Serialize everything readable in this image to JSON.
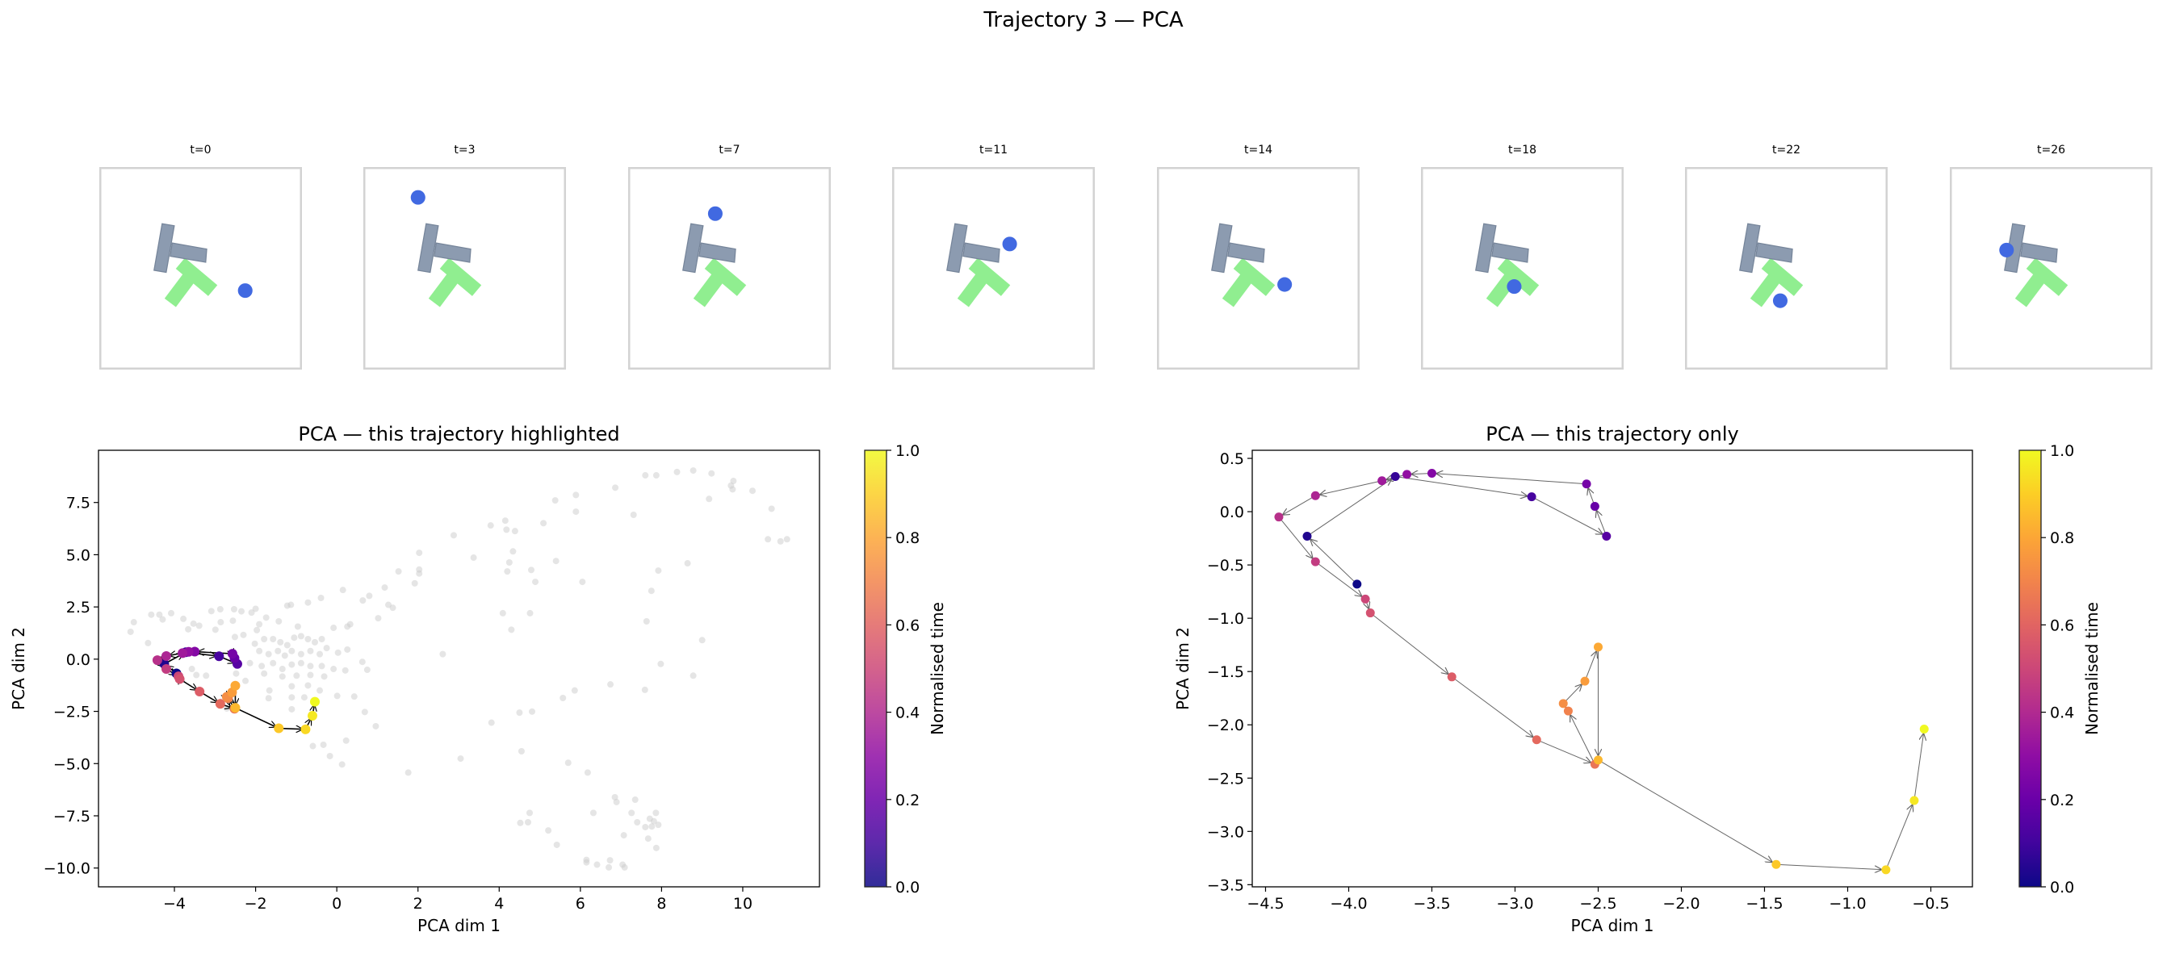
{
  "title": "Trajectory 3 — PCA",
  "thumbnails": [
    {
      "label": "t=0"
    },
    {
      "label": "t=3"
    },
    {
      "label": "t=7"
    },
    {
      "label": "t=11"
    },
    {
      "label": "t=14"
    },
    {
      "label": "t=18"
    },
    {
      "label": "t=22"
    },
    {
      "label": "t=26"
    }
  ],
  "colors": {
    "agent": "#4169e1",
    "block": "#8c9bb0",
    "target": "#90ee90",
    "background_points": "#cccccc",
    "arrows_left": "#000000",
    "arrows_right": "#666666"
  },
  "trajectory": {
    "x": [
      -3.95,
      -4.25,
      -3.72,
      -2.9,
      -2.45,
      -2.52,
      -2.57,
      -3.5,
      -3.65,
      -3.8,
      -4.2,
      -4.42,
      -4.2,
      -3.9,
      -3.87,
      -3.38,
      -2.87,
      -2.52,
      -2.68,
      -2.71,
      -2.58,
      -2.5,
      -2.5,
      -1.43,
      -0.77,
      -0.6,
      -0.54
    ],
    "y": [
      -0.68,
      -0.23,
      0.33,
      0.14,
      -0.23,
      0.05,
      0.26,
      0.36,
      0.35,
      0.29,
      0.15,
      -0.05,
      -0.47,
      -0.82,
      -0.95,
      -1.55,
      -2.14,
      -2.37,
      -1.87,
      -1.8,
      -1.59,
      -1.27,
      -2.33,
      -3.31,
      -3.36,
      -2.71,
      -2.04
    ]
  },
  "chart_data": [
    {
      "type": "scatter",
      "title": "PCA — this trajectory highlighted",
      "xlabel": "PCA dim 1",
      "ylabel": "PCA dim 2",
      "xlim": [
        -5.87,
        11.89
      ],
      "ylim": [
        -10.9,
        10.0
      ],
      "xticks": [
        -4,
        -2,
        0,
        2,
        4,
        6,
        8,
        10
      ],
      "yticks": [
        -10.0,
        -7.5,
        -5.0,
        -2.5,
        0.0,
        2.5,
        5.0,
        7.5
      ],
      "grid": false,
      "colorbar": {
        "label": "Normalised time",
        "ticks": [
          0.0,
          0.2,
          0.4,
          0.6,
          0.8,
          1.0
        ],
        "colormap": "plasma"
      },
      "background_points": [
        [
          7.6,
          8.8
        ],
        [
          7.87,
          8.8
        ],
        [
          8.38,
          8.96
        ],
        [
          8.78,
          9.03
        ],
        [
          9.23,
          8.89
        ],
        [
          9.77,
          8.53
        ],
        [
          9.71,
          8.31
        ],
        [
          9.75,
          8.13
        ],
        [
          10.24,
          8.06
        ],
        [
          6.86,
          8.21
        ],
        [
          5.89,
          7.86
        ],
        [
          5.38,
          7.6
        ],
        [
          9.17,
          7.67
        ],
        [
          10.71,
          7.2
        ],
        [
          5.89,
          7.06
        ],
        [
          7.31,
          6.91
        ],
        [
          4.15,
          6.63
        ],
        [
          5.09,
          6.51
        ],
        [
          3.79,
          6.4
        ],
        [
          4.18,
          6.2
        ],
        [
          4.39,
          6.13
        ],
        [
          2.88,
          5.93
        ],
        [
          10.62,
          5.74
        ],
        [
          10.93,
          5.64
        ],
        [
          11.09,
          5.74
        ],
        [
          4.34,
          5.16
        ],
        [
          2.03,
          5.09
        ],
        [
          3.37,
          4.86
        ],
        [
          5.4,
          4.7
        ],
        [
          4.25,
          4.63
        ],
        [
          8.64,
          4.59
        ],
        [
          4.79,
          4.27
        ],
        [
          4.2,
          4.2
        ],
        [
          2.03,
          4.29
        ],
        [
          2.03,
          4.1
        ],
        [
          1.52,
          4.2
        ],
        [
          7.92,
          4.24
        ],
        [
          4.89,
          3.7
        ],
        [
          6.05,
          3.7
        ],
        [
          1.92,
          3.63
        ],
        [
          1.18,
          3.43
        ],
        [
          0.15,
          3.31
        ],
        [
          7.75,
          3.27
        ],
        [
          0.8,
          3.03
        ],
        [
          -0.39,
          2.93
        ],
        [
          0.64,
          2.81
        ],
        [
          1.38,
          2.46
        ],
        [
          1.27,
          2.6
        ],
        [
          -1.22,
          2.56
        ],
        [
          -1.13,
          2.6
        ],
        [
          -0.71,
          2.71
        ],
        [
          4.09,
          2.2
        ],
        [
          4.76,
          2.2
        ],
        [
          1.02,
          1.96
        ],
        [
          7.63,
          1.81
        ],
        [
          0.33,
          1.67
        ],
        [
          4.3,
          1.41
        ],
        [
          9.0,
          0.91
        ],
        [
          2.61,
          0.24
        ],
        [
          7.98,
          -0.23
        ],
        [
          8.78,
          -0.79
        ],
        [
          6.74,
          -1.21
        ],
        [
          5.86,
          -1.5
        ],
        [
          7.59,
          -1.47
        ],
        [
          5.57,
          -1.86
        ],
        [
          4.5,
          -2.56
        ],
        [
          4.81,
          -2.51
        ],
        [
          0.96,
          -3.21
        ],
        [
          3.81,
          -3.04
        ],
        [
          0.69,
          -2.53
        ],
        [
          0.23,
          -3.9
        ],
        [
          -0.33,
          -4.1
        ],
        [
          -0.59,
          -4.16
        ],
        [
          -0.17,
          -4.64
        ],
        [
          0.13,
          -5.04
        ],
        [
          1.76,
          -5.43
        ],
        [
          3.05,
          -4.76
        ],
        [
          4.55,
          -4.41
        ],
        [
          5.7,
          -4.96
        ],
        [
          6.18,
          -5.43
        ],
        [
          6.85,
          -6.61
        ],
        [
          6.89,
          -6.84
        ],
        [
          7.35,
          -6.73
        ],
        [
          4.75,
          -7.36
        ],
        [
          6.32,
          -7.36
        ],
        [
          7.26,
          -7.36
        ],
        [
          7.86,
          -7.36
        ],
        [
          7.71,
          -7.64
        ],
        [
          7.81,
          -7.76
        ],
        [
          7.4,
          -7.81
        ],
        [
          4.52,
          -7.84
        ],
        [
          4.71,
          -7.81
        ],
        [
          7.92,
          -7.93
        ],
        [
          7.6,
          -8.04
        ],
        [
          7.76,
          -8.01
        ],
        [
          5.21,
          -8.2
        ],
        [
          7.07,
          -8.43
        ],
        [
          7.67,
          -8.59
        ],
        [
          5.42,
          -8.89
        ],
        [
          7.87,
          -9.04
        ],
        [
          6.15,
          -9.61
        ],
        [
          6.15,
          -9.73
        ],
        [
          6.41,
          -9.84
        ],
        [
          6.73,
          -9.63
        ],
        [
          7.04,
          -9.84
        ],
        [
          6.7,
          -9.97
        ],
        [
          7.09,
          -9.97
        ],
        [
          -5.0,
          1.77
        ],
        [
          -5.08,
          1.31
        ],
        [
          -4.57,
          2.13
        ],
        [
          -4.37,
          2.13
        ],
        [
          -4.29,
          1.9
        ],
        [
          -4.08,
          2.2
        ],
        [
          -3.78,
          1.93
        ],
        [
          -3.53,
          1.7
        ],
        [
          -3.66,
          1.43
        ],
        [
          -3.39,
          1.6
        ],
        [
          -3.09,
          2.3
        ],
        [
          -2.87,
          2.39
        ],
        [
          -2.53,
          2.39
        ],
        [
          -2.35,
          2.29
        ],
        [
          -2.0,
          2.41
        ],
        [
          -2.1,
          2.23
        ],
        [
          -2.86,
          1.77
        ],
        [
          -2.56,
          1.84
        ],
        [
          -2.99,
          1.41
        ],
        [
          -1.74,
          1.99
        ],
        [
          -1.43,
          1.81
        ],
        [
          -1.91,
          1.67
        ],
        [
          -1.97,
          1.39
        ],
        [
          -4.65,
          0.77
        ],
        [
          -2.51,
          1.06
        ],
        [
          -2.3,
          1.16
        ],
        [
          -0.96,
          1.56
        ],
        [
          -0.08,
          1.5
        ],
        [
          0.26,
          1.56
        ],
        [
          -2.02,
          0.74
        ],
        [
          -1.79,
          0.96
        ],
        [
          -1.57,
          0.96
        ],
        [
          -1.39,
          0.81
        ],
        [
          -1.22,
          0.67
        ],
        [
          -1.05,
          1.03
        ],
        [
          -0.88,
          1.1
        ],
        [
          -0.71,
          0.96
        ],
        [
          -0.54,
          0.81
        ],
        [
          -0.37,
          0.96
        ],
        [
          -0.25,
          0.53
        ],
        [
          -1.91,
          0.39
        ],
        [
          -1.68,
          0.24
        ],
        [
          -1.45,
          0.39
        ],
        [
          -1.28,
          0.17
        ],
        [
          -1.11,
          0.39
        ],
        [
          -0.88,
          0.24
        ],
        [
          -0.65,
          0.39
        ],
        [
          -0.42,
          0.24
        ],
        [
          0.03,
          0.31
        ],
        [
          0.26,
          0.46
        ],
        [
          -2.14,
          -0.19
        ],
        [
          -1.85,
          -0.33
        ],
        [
          -1.57,
          -0.19
        ],
        [
          -1.34,
          -0.47
        ],
        [
          -1.11,
          -0.26
        ],
        [
          -0.88,
          -0.19
        ],
        [
          -0.65,
          -0.33
        ],
        [
          -0.37,
          -0.33
        ],
        [
          -0.08,
          -0.47
        ],
        [
          0.21,
          -0.54
        ],
        [
          0.63,
          -0.13
        ],
        [
          0.75,
          -0.51
        ],
        [
          -1.79,
          -0.69
        ],
        [
          -1.34,
          -0.83
        ],
        [
          -0.99,
          -0.79
        ],
        [
          -0.65,
          -0.76
        ],
        [
          -0.31,
          -0.83
        ],
        [
          -2.48,
          -0.69
        ],
        [
          -2.25,
          -1.04
        ],
        [
          -3.22,
          -0.79
        ],
        [
          -3.57,
          -0.47
        ],
        [
          -3.46,
          -0.76
        ],
        [
          -1.66,
          -1.5
        ],
        [
          -1.11,
          -1.3
        ],
        [
          -0.71,
          -1.26
        ],
        [
          -0.42,
          -1.5
        ],
        [
          0.01,
          -1.76
        ],
        [
          0.43,
          -1.79
        ],
        [
          -1.68,
          -1.87
        ],
        [
          -1.11,
          -1.83
        ],
        [
          -0.8,
          -1.83
        ],
        [
          -1.11,
          -2.4
        ],
        [
          -2.71,
          -2.36
        ],
        [
          -2.85,
          -2.04
        ]
      ]
    },
    {
      "type": "scatter",
      "title": "PCA — this trajectory only",
      "xlabel": "PCA dim 1",
      "ylabel": "PCA dim 2",
      "xlim": [
        -4.58,
        -0.25
      ],
      "ylim": [
        -3.52,
        0.576
      ],
      "xticks": [
        -4.5,
        -4.0,
        -3.5,
        -3.0,
        -2.5,
        -2.0,
        -1.5,
        -1.0,
        -0.5
      ],
      "yticks": [
        -3.5,
        -3.0,
        -2.5,
        -2.0,
        -1.5,
        -1.0,
        -0.5,
        0.0,
        0.5
      ],
      "grid": false,
      "colorbar": {
        "label": "Normalised time",
        "ticks": [
          0.0,
          0.2,
          0.4,
          0.6,
          0.8,
          1.0
        ],
        "colormap": "plasma"
      }
    }
  ]
}
